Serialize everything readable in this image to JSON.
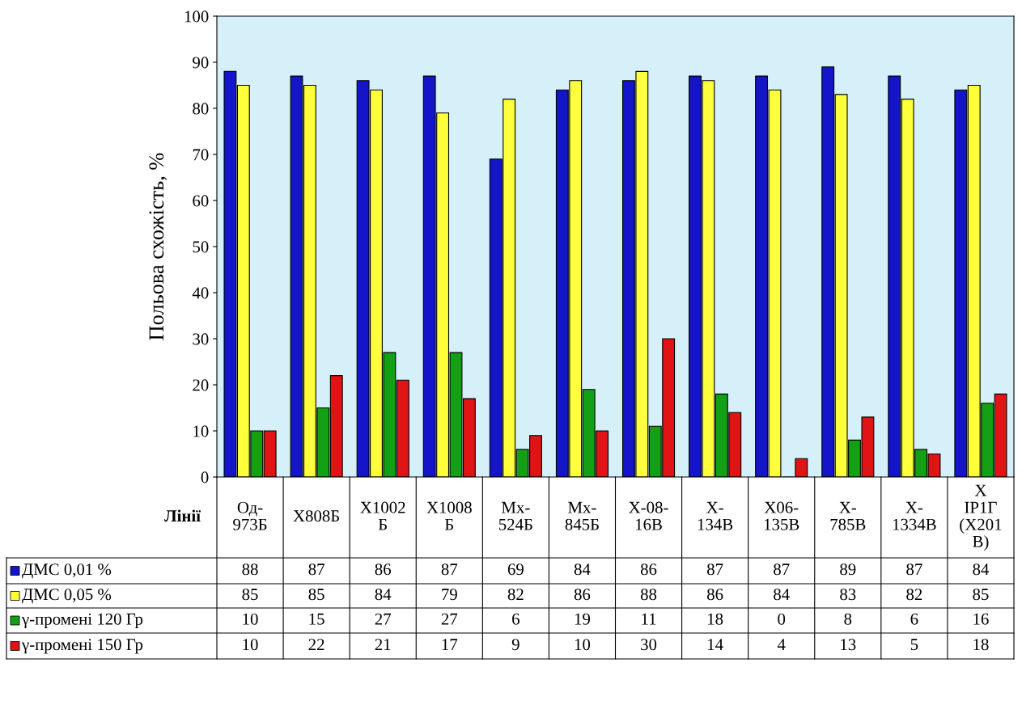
{
  "chart_data": {
    "type": "bar",
    "ylabel": "Польова схожість, %",
    "xlabel": "Лінії",
    "categories": [
      "Од-\n973Б",
      "Х808Б",
      "Х1002\nБ",
      "Х1008\nБ",
      "Мх-\n524Б",
      "Мх-\n845Б",
      "Х-08-\n16В",
      "Х-\n134В",
      "Х06-\n135В",
      "Х-\n785В",
      "Х-\n1334В",
      "Х\nІР1Г\n(Х201\nВ)"
    ],
    "series": [
      {
        "name": "ДМС 0,01 %",
        "color": "#1414c8",
        "values": [
          88,
          87,
          86,
          87,
          69,
          84,
          86,
          87,
          87,
          89,
          87,
          84
        ]
      },
      {
        "name": "ДМС 0,05 %",
        "color": "#ffff3c",
        "values": [
          85,
          85,
          84,
          79,
          82,
          86,
          88,
          86,
          84,
          83,
          82,
          85
        ]
      },
      {
        "name": "γ-промені 120 Гр",
        "color": "#14a014",
        "values": [
          10,
          15,
          27,
          27,
          6,
          19,
          11,
          18,
          0,
          8,
          6,
          16
        ]
      },
      {
        "name": "γ-промені 150 Гр",
        "color": "#e01414",
        "values": [
          10,
          22,
          21,
          17,
          9,
          10,
          30,
          14,
          4,
          13,
          5,
          18
        ]
      }
    ],
    "ylim": [
      0,
      100
    ],
    "yticks": [
      0,
      10,
      20,
      30,
      40,
      50,
      60,
      70,
      80,
      90,
      100
    ],
    "grid": false,
    "data_labels": true,
    "legend": "bottom left"
  }
}
